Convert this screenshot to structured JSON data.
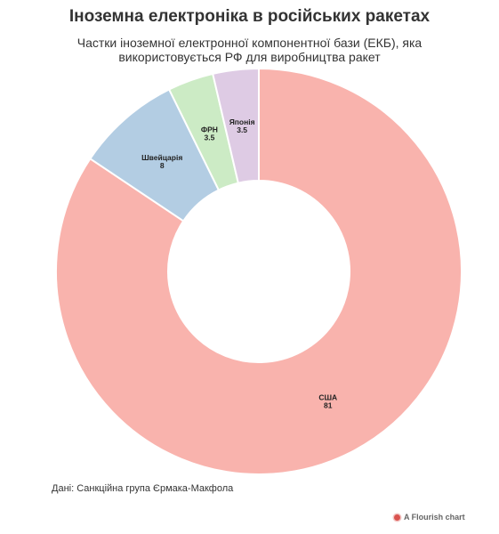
{
  "title": "Іноземна електроніка в російських ракетах",
  "subtitle": "Частки іноземної електронної компонентної бази (ЕКБ), яка використовується РФ для виробництва ракет",
  "source": "Дані: Санкційна група Єрмака-Макфола",
  "credit": {
    "text": "A Flourish chart",
    "icon": "flourish-logo-icon"
  },
  "chart_data": {
    "type": "pie",
    "style": "donut",
    "categories": [
      "США",
      "Швейцарія",
      "ФРН",
      "Японія"
    ],
    "values": [
      81,
      8,
      3.5,
      3.5
    ],
    "colors": [
      "#f9b3ad",
      "#b3cde3",
      "#ccebc5",
      "#decbe4"
    ],
    "title": "Іноземна електроніка в російських ракетах",
    "legend": "none"
  }
}
